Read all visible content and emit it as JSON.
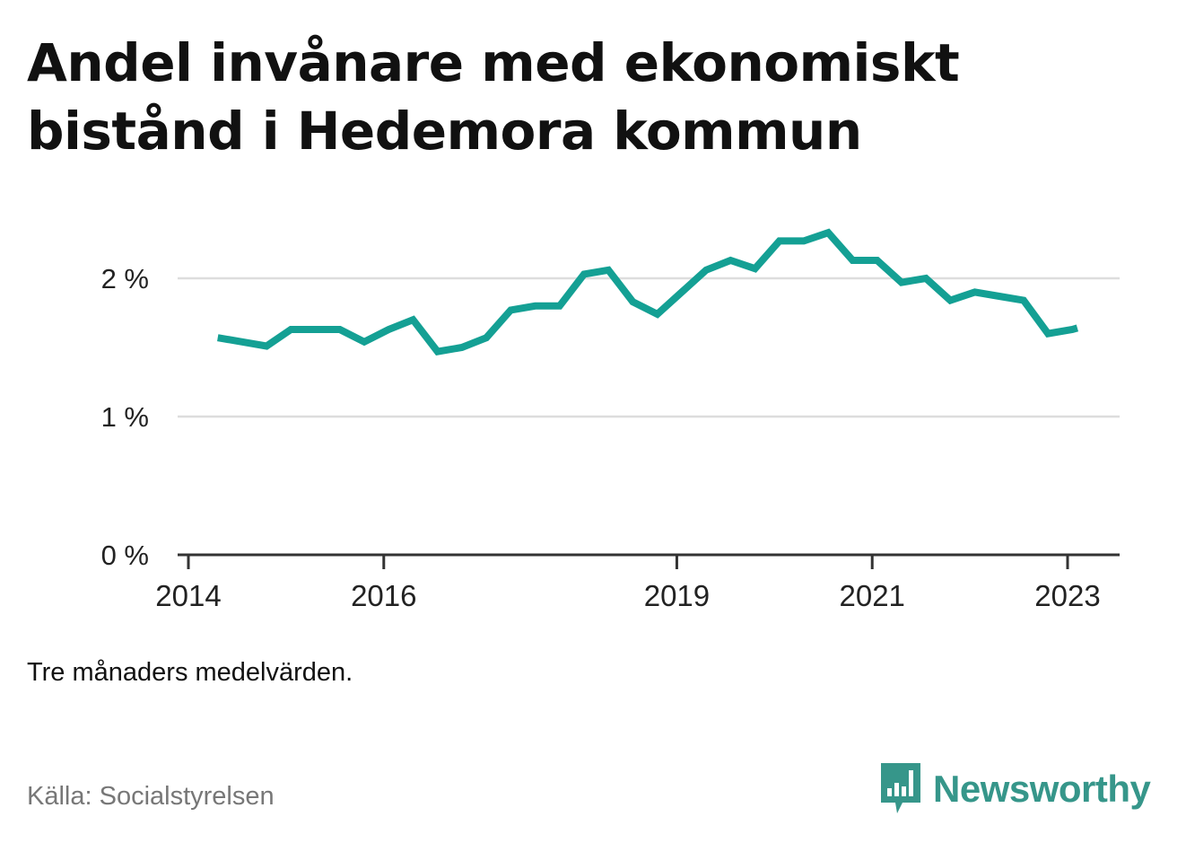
{
  "title": "Andel invånare med ekonomiskt bistånd i Hedemora kommun",
  "note": "Tre månaders medelvärden.",
  "source": "Källa: Socialstyrelsen",
  "brand": {
    "name": "Newsworthy",
    "icon": "bar-chart-speech-bubble-icon",
    "color": "#36968a"
  },
  "chart_data": {
    "type": "line",
    "title": "Andel invånare med ekonomiskt bistånd i Hedemora kommun",
    "xlabel": "",
    "ylabel": "",
    "ylim": [
      0,
      2.5
    ],
    "yticks": [
      {
        "value": 0,
        "label": "0 %"
      },
      {
        "value": 1,
        "label": "1 %"
      },
      {
        "value": 2,
        "label": "2 %"
      }
    ],
    "xticks": [
      {
        "value": 2014,
        "label": "2014"
      },
      {
        "value": 2016,
        "label": "2016"
      },
      {
        "value": 2019,
        "label": "2019"
      },
      {
        "value": 2021,
        "label": "2021"
      },
      {
        "value": 2023,
        "label": "2023"
      }
    ],
    "grid": true,
    "line_color": "#14a094",
    "series": [
      {
        "name": "",
        "x": [
          2014.3,
          2014.55,
          2014.8,
          2015.05,
          2015.3,
          2015.55,
          2015.8,
          2016.05,
          2016.3,
          2016.55,
          2016.8,
          2017.05,
          2017.3,
          2017.55,
          2017.8,
          2018.05,
          2018.3,
          2018.55,
          2018.8,
          2019.05,
          2019.3,
          2019.55,
          2019.8,
          2020.05,
          2020.3,
          2020.55,
          2020.8,
          2021.05,
          2021.3,
          2021.55,
          2021.8,
          2022.05,
          2022.3,
          2022.55,
          2022.8,
          2023.05,
          2023.1
        ],
        "values": [
          1.57,
          1.54,
          1.51,
          1.63,
          1.63,
          1.63,
          1.54,
          1.63,
          1.7,
          1.47,
          1.5,
          1.57,
          1.77,
          1.8,
          1.8,
          2.03,
          2.06,
          1.83,
          1.74,
          1.9,
          2.06,
          2.13,
          2.07,
          2.27,
          2.27,
          2.33,
          2.13,
          2.13,
          1.97,
          2.0,
          1.84,
          1.9,
          1.87,
          1.84,
          1.6,
          1.63,
          1.64
        ]
      }
    ]
  }
}
